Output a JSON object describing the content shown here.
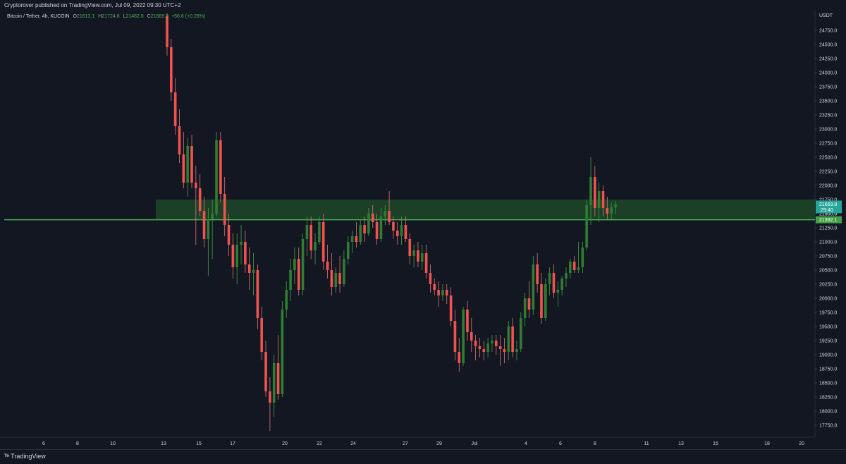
{
  "header": {
    "publisher_text": "Cryptorover published on TradingView.com, Jul 09, 2022 09:30 UTC+2"
  },
  "legend": {
    "symbol": "Bitcoin / Tether, 4h, KUCOIN",
    "o_label": "O",
    "o_value": "21613.1",
    "h_label": "H",
    "h_value": "21724.6",
    "l_label": "L",
    "l_value": "21482.8",
    "c_label": "C",
    "c_value": "21669.8",
    "change": "+56.6 (+0.26%)"
  },
  "footer": {
    "brand": "TradingView",
    "logo_icon": "tradingview-logo-icon"
  },
  "colors": {
    "background": "#131722",
    "up": "#26a69a",
    "up_candle": "#2e7d32",
    "down": "#ef5350",
    "zone": "#1f4d2a",
    "level_line": "#4caf50",
    "axis_text": "#d1d4dc"
  },
  "chart_data": {
    "type": "candlestick",
    "title": "Bitcoin / Tether, 4h, KUCOIN",
    "currency_label": "USDT",
    "ylim": [
      17500,
      25000
    ],
    "y_ticks": [
      "24750.0",
      "24500.0",
      "24250.0",
      "24000.0",
      "23750.0",
      "23500.0",
      "23250.0",
      "23000.0",
      "22750.0",
      "22500.0",
      "22250.0",
      "22000.0",
      "21750.0",
      "21500.0",
      "21250.0",
      "21000.0",
      "20750.0",
      "20500.0",
      "20250.0",
      "20000.0",
      "19750.0",
      "19500.0",
      "19250.0",
      "19000.0",
      "18750.0",
      "18500.0",
      "18250.0",
      "18000.0",
      "17750.0"
    ],
    "x_ticks": [
      "6",
      "8",
      "10",
      "13",
      "15",
      "17",
      "20",
      "22",
      "24",
      "27",
      "29",
      "Jul",
      "4",
      "6",
      "8",
      "11",
      "13",
      "15",
      "18",
      "20"
    ],
    "price_labels": {
      "last_price": "21669.8",
      "countdown": "29:40",
      "level": "21392.1",
      "behind": "21500.0"
    },
    "support_zone": [
      21392.1,
      21750
    ],
    "level_line": 21392.1,
    "grid": false,
    "candles": [
      [
        25000,
        25050,
        24300,
        24450
      ],
      [
        24450,
        24600,
        23500,
        23650
      ],
      [
        23650,
        23900,
        22900,
        23050
      ],
      [
        23050,
        23350,
        22400,
        22550
      ],
      [
        22550,
        22950,
        21950,
        22050
      ],
      [
        22050,
        22850,
        21800,
        22700
      ],
      [
        22700,
        22900,
        21950,
        22050
      ],
      [
        22050,
        22350,
        20950,
        21950
      ],
      [
        21950,
        22200,
        21450,
        21550
      ],
      [
        21550,
        21800,
        20900,
        21050
      ],
      [
        21050,
        21600,
        20400,
        21400
      ],
      [
        21400,
        21750,
        20700,
        21500
      ],
      [
        21500,
        22950,
        21450,
        22800
      ],
      [
        22800,
        22950,
        21700,
        21850
      ],
      [
        21850,
        22150,
        21100,
        21300
      ],
      [
        21300,
        21500,
        20750,
        20950
      ],
      [
        20950,
        21150,
        20350,
        20550
      ],
      [
        20550,
        21150,
        20250,
        20950
      ],
      [
        20950,
        21300,
        20600,
        21000
      ],
      [
        21000,
        21200,
        20450,
        20600
      ],
      [
        20600,
        20900,
        20150,
        20450
      ],
      [
        20450,
        20800,
        20050,
        20500
      ],
      [
        20500,
        20600,
        19450,
        19650
      ],
      [
        19650,
        19850,
        18900,
        19050
      ],
      [
        19050,
        19250,
        18250,
        18350
      ],
      [
        18350,
        18600,
        17650,
        18150
      ],
      [
        18150,
        19000,
        17900,
        18850
      ],
      [
        18850,
        19350,
        18200,
        18300
      ],
      [
        18300,
        19950,
        18250,
        19800
      ],
      [
        19800,
        20300,
        19650,
        20150
      ],
      [
        20150,
        20700,
        19950,
        20500
      ],
      [
        20500,
        20900,
        20250,
        20700
      ],
      [
        20700,
        20900,
        20050,
        20150
      ],
      [
        20150,
        21150,
        20050,
        21050
      ],
      [
        21050,
        21450,
        20750,
        21300
      ],
      [
        21300,
        21450,
        20700,
        20850
      ],
      [
        20850,
        21150,
        20600,
        21000
      ],
      [
        21000,
        21450,
        20950,
        21350
      ],
      [
        21350,
        21500,
        20500,
        20650
      ],
      [
        20650,
        20950,
        20350,
        20500
      ],
      [
        20500,
        20800,
        20050,
        20200
      ],
      [
        20200,
        20550,
        20100,
        20450
      ],
      [
        20450,
        20750,
        20100,
        20250
      ],
      [
        20250,
        20850,
        20200,
        20700
      ],
      [
        20700,
        21100,
        20600,
        21000
      ],
      [
        21000,
        21200,
        20800,
        21100
      ],
      [
        21100,
        21350,
        20900,
        21000
      ],
      [
        21000,
        21400,
        20950,
        21300
      ],
      [
        21300,
        21450,
        21000,
        21150
      ],
      [
        21150,
        21600,
        21100,
        21500
      ],
      [
        21500,
        21650,
        21250,
        21350
      ],
      [
        21350,
        21500,
        20950,
        21050
      ],
      [
        21050,
        21600,
        21000,
        21450
      ],
      [
        21450,
        21650,
        21300,
        21550
      ],
      [
        21550,
        21900,
        21300,
        21350
      ],
      [
        21350,
        21450,
        21050,
        21200
      ],
      [
        21200,
        21350,
        20950,
        21100
      ],
      [
        21100,
        21450,
        20950,
        21300
      ],
      [
        21300,
        21450,
        21000,
        21050
      ],
      [
        21050,
        21150,
        20600,
        20750
      ],
      [
        20750,
        20950,
        20550,
        20850
      ],
      [
        20850,
        21000,
        20550,
        20650
      ],
      [
        20650,
        20950,
        20500,
        20800
      ],
      [
        20800,
        20950,
        20350,
        20450
      ],
      [
        20450,
        20600,
        20100,
        20250
      ],
      [
        20250,
        20350,
        20050,
        20150
      ],
      [
        20150,
        20300,
        19850,
        20050
      ],
      [
        20050,
        20250,
        19950,
        20150
      ],
      [
        20150,
        20250,
        19900,
        20050
      ],
      [
        20050,
        20200,
        19500,
        19600
      ],
      [
        19600,
        19800,
        18900,
        19050
      ],
      [
        19050,
        19300,
        18700,
        18850
      ],
      [
        18850,
        19850,
        18800,
        19800
      ],
      [
        19800,
        19950,
        19250,
        19400
      ],
      [
        19400,
        19650,
        19050,
        19250
      ],
      [
        19250,
        19350,
        18900,
        19150
      ],
      [
        19150,
        19300,
        18950,
        19100
      ],
      [
        19100,
        19250,
        18900,
        19050
      ],
      [
        19050,
        19300,
        18950,
        19200
      ],
      [
        19200,
        19350,
        19050,
        19250
      ],
      [
        19250,
        19350,
        19000,
        19150
      ],
      [
        19150,
        19350,
        18800,
        19100
      ],
      [
        19100,
        19300,
        18850,
        19050
      ],
      [
        19050,
        19600,
        18900,
        19500
      ],
      [
        19500,
        19650,
        18950,
        19050
      ],
      [
        19050,
        19250,
        18900,
        19100
      ],
      [
        19100,
        19750,
        19050,
        19650
      ],
      [
        19650,
        20100,
        19500,
        20000
      ],
      [
        20000,
        20300,
        19650,
        19800
      ],
      [
        19800,
        20750,
        19700,
        20600
      ],
      [
        20600,
        20800,
        20100,
        20250
      ],
      [
        20250,
        20450,
        19550,
        19650
      ],
      [
        19650,
        20350,
        19600,
        20250
      ],
      [
        20250,
        20550,
        20050,
        20450
      ],
      [
        20450,
        20600,
        20000,
        20100
      ],
      [
        20100,
        20300,
        19850,
        20150
      ],
      [
        20150,
        20400,
        20050,
        20350
      ],
      [
        20350,
        20550,
        20200,
        20450
      ],
      [
        20450,
        20700,
        20350,
        20650
      ],
      [
        20650,
        20750,
        20450,
        20500
      ],
      [
        20500,
        21000,
        20450,
        20550
      ],
      [
        20550,
        21000,
        20450,
        20900
      ],
      [
        20900,
        21750,
        20850,
        21650
      ],
      [
        21650,
        22500,
        21300,
        22150
      ],
      [
        22150,
        22350,
        21450,
        21600
      ],
      [
        21600,
        22050,
        21350,
        21900
      ],
      [
        21900,
        22000,
        21450,
        21600
      ],
      [
        21600,
        21800,
        21400,
        21500
      ],
      [
        21500,
        21700,
        21400,
        21613.1
      ],
      [
        21613.1,
        21724.6,
        21482.8,
        21669.8
      ]
    ]
  }
}
